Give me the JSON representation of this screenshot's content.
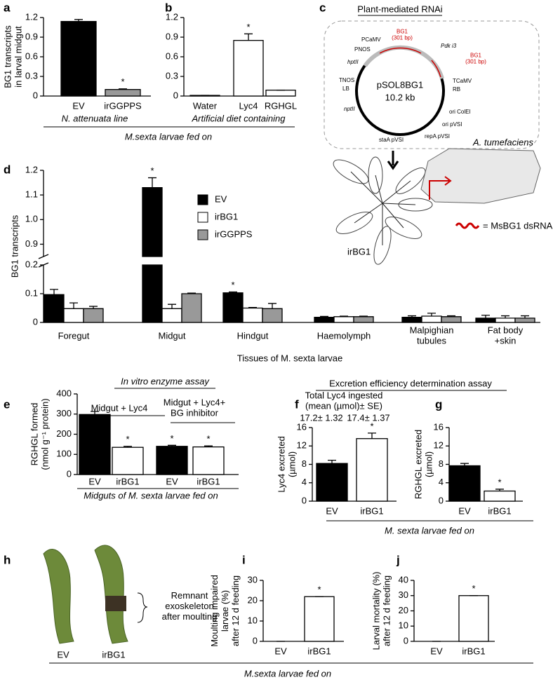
{
  "chart_data": [
    {
      "type": "bar",
      "panel": "a",
      "ylabel": "BG1 transcripts\nin larval midgut",
      "categories": [
        "EV",
        "irGGPPS"
      ],
      "values": [
        1.14,
        0.1
      ],
      "errors": [
        0.03,
        0.01
      ],
      "colors": [
        "#000000",
        "#999999"
      ],
      "ylim": [
        0,
        1.2
      ],
      "yticks": [
        0,
        0.3,
        0.6,
        0.9,
        1.2
      ],
      "xlabel": "N. attenuata line",
      "annotations": [
        {
          "index": 1,
          "text": "*"
        }
      ]
    },
    {
      "type": "bar",
      "panel": "b",
      "categories": [
        "Water",
        "Lyc4",
        "RGHGL"
      ],
      "values": [
        0.01,
        0.85,
        0.09
      ],
      "errors": [
        0,
        0.1,
        0
      ],
      "colors": [
        "#ffffff",
        "#ffffff",
        "#ffffff"
      ],
      "ylim": [
        0,
        1.2
      ],
      "yticks": [
        0,
        0.3,
        0.6,
        0.9,
        1.2
      ],
      "xlabel": "Artificial diet containing",
      "annotations": [
        {
          "index": 1,
          "text": "*"
        }
      ]
    },
    {
      "type": "bar",
      "panel": "d",
      "ylabel": "BG1 transcripts",
      "xlabel": "Tissues of M. sexta larvae",
      "categories": [
        "Foregut",
        "Midgut",
        "Hindgut",
        "Haemolymph",
        "Malpighian\ntubules",
        "Fat body\n+skin"
      ],
      "series": [
        {
          "name": "EV",
          "color": "#000000",
          "values": [
            0.097,
            1.13,
            0.103,
            0.018,
            0.018,
            0.015
          ],
          "errors": [
            0.018,
            0.04,
            0.003,
            0.003,
            0.005,
            0.01
          ]
        },
        {
          "name": "irBG1",
          "color": "#ffffff",
          "values": [
            0.048,
            0.048,
            0.05,
            0.02,
            0.022,
            0.015
          ],
          "errors": [
            0.02,
            0.015,
            0.002,
            0.002,
            0.01,
            0.008
          ]
        },
        {
          "name": "irGGPPS",
          "color": "#999999",
          "values": [
            0.048,
            0.1,
            0.048,
            0.02,
            0.02,
            0.015
          ],
          "errors": [
            0.008,
            0.002,
            0.018,
            0.002,
            0.003,
            0.008
          ]
        }
      ],
      "ylim": [
        0,
        1.2
      ],
      "axis_break": [
        0.2,
        0.85
      ],
      "yticks": [
        0,
        0.1,
        0.2,
        0.9,
        {
          "value": 1,
          "label": "1.0"
        },
        1.1,
        1.2
      ],
      "annotations": [
        {
          "series": 0,
          "index": 1,
          "text": "*"
        },
        {
          "series": 0,
          "index": 2,
          "text": "*"
        }
      ]
    },
    {
      "type": "bar",
      "panel": "e",
      "title": "In vitro enzyme assay",
      "ylabel": "RGHGL formed\n(nmol g⁻¹ protein)",
      "categories": [
        "EV",
        "irBG1",
        "EV",
        "irBG1"
      ],
      "group_labels": [
        "Midgut + Lyc4",
        "Midgut + Lyc4+\nBG inhibitor"
      ],
      "values": [
        298,
        135,
        140,
        137
      ],
      "errors": [
        15,
        5,
        5,
        5
      ],
      "colors": [
        "#000000",
        "#ffffff",
        "#000000",
        "#ffffff"
      ],
      "ylim": [
        0,
        400
      ],
      "yticks": [
        0,
        100,
        200,
        300,
        400
      ],
      "xlabel": "Midguts of M. sexta larvae fed on",
      "annotations": [
        {
          "index": 1,
          "text": "*"
        },
        {
          "index": 2,
          "text": "*"
        },
        {
          "index": 3,
          "text": "*"
        }
      ]
    },
    {
      "type": "bar",
      "panel": "f",
      "ylabel": "Lyc4 excreted\n(µmol)",
      "note": "Total Lyc4 ingested\n(mean (µmol)± SE)",
      "note_values": [
        "17.2± 1.32",
        "17.4± 1.37"
      ],
      "categories": [
        "EV",
        "irBG1"
      ],
      "values": [
        8.2,
        13.6
      ],
      "errors": [
        0.7,
        1.2
      ],
      "colors": [
        "#000000",
        "#ffffff"
      ],
      "ylim": [
        0,
        16
      ],
      "yticks": [
        0,
        4,
        8,
        12,
        16
      ],
      "annotations": [
        {
          "index": 1,
          "text": "*"
        }
      ]
    },
    {
      "type": "bar",
      "panel": "g",
      "ylabel": "RGHGL excreted\n(µmol)",
      "categories": [
        "EV",
        "irBG1"
      ],
      "values": [
        7.7,
        2.2
      ],
      "errors": [
        0.5,
        0.4
      ],
      "colors": [
        "#000000",
        "#ffffff"
      ],
      "ylim": [
        0,
        16
      ],
      "yticks": [
        0,
        4,
        8,
        12,
        16
      ],
      "annotations": [
        {
          "index": 1,
          "text": "*"
        }
      ]
    },
    {
      "type": "bar",
      "panel": "i",
      "ylabel": "Moulting impaired\nlarvae (%)\nafter 12 d feeding",
      "categories": [
        "EV",
        "irBG1"
      ],
      "values": [
        0,
        22
      ],
      "errors": [
        0,
        0
      ],
      "colors": [
        "#ffffff",
        "#ffffff"
      ],
      "ylim": [
        0,
        30
      ],
      "yticks": [
        0,
        10,
        20,
        30
      ],
      "annotations": [
        {
          "index": 1,
          "text": "*"
        }
      ]
    },
    {
      "type": "bar",
      "panel": "j",
      "ylabel": "Larval mortality (%)\nafter 12 d feeding",
      "categories": [
        "EV",
        "irBG1"
      ],
      "values": [
        0,
        30
      ],
      "errors": [
        0,
        0
      ],
      "colors": [
        "#ffffff",
        "#ffffff"
      ],
      "ylim": [
        0,
        40
      ],
      "yticks": [
        0,
        10,
        20,
        30,
        40
      ],
      "annotations": [
        {
          "index": 1,
          "text": "*"
        }
      ]
    }
  ],
  "shared": {
    "ab_xlabel": "M.sexta larvae fed on",
    "fg_title": "Excretion efficiency determination assay",
    "fg_xlabel": "M. sexta larvae fed on",
    "ij_xlabel": "M.sexta larvae fed on"
  },
  "diagram": {
    "panel": "c",
    "title": "Plant-mediated RNAi",
    "plasmid": "pSOL8BG1",
    "size": "10.2 kb",
    "host": "A. tumefaciens",
    "elements": [
      "PCaMV",
      "PNOS",
      "hptII",
      "TNOS",
      "LB",
      "nptII",
      "BG1\n(301 bp)",
      "Pdk i3",
      "BG1\n(301 bp)",
      "TCaMV",
      "RB",
      "ori ColEI",
      "ori pVSI",
      "repA pVSI",
      "staA pVSI"
    ],
    "plant": "irBG1",
    "legend": "= MsBG1 dsRNA"
  },
  "photo": {
    "panel": "h",
    "labels": [
      "EV",
      "irBG1"
    ],
    "annotation": "Remnant\nexoskeleton\nafter moulting"
  }
}
